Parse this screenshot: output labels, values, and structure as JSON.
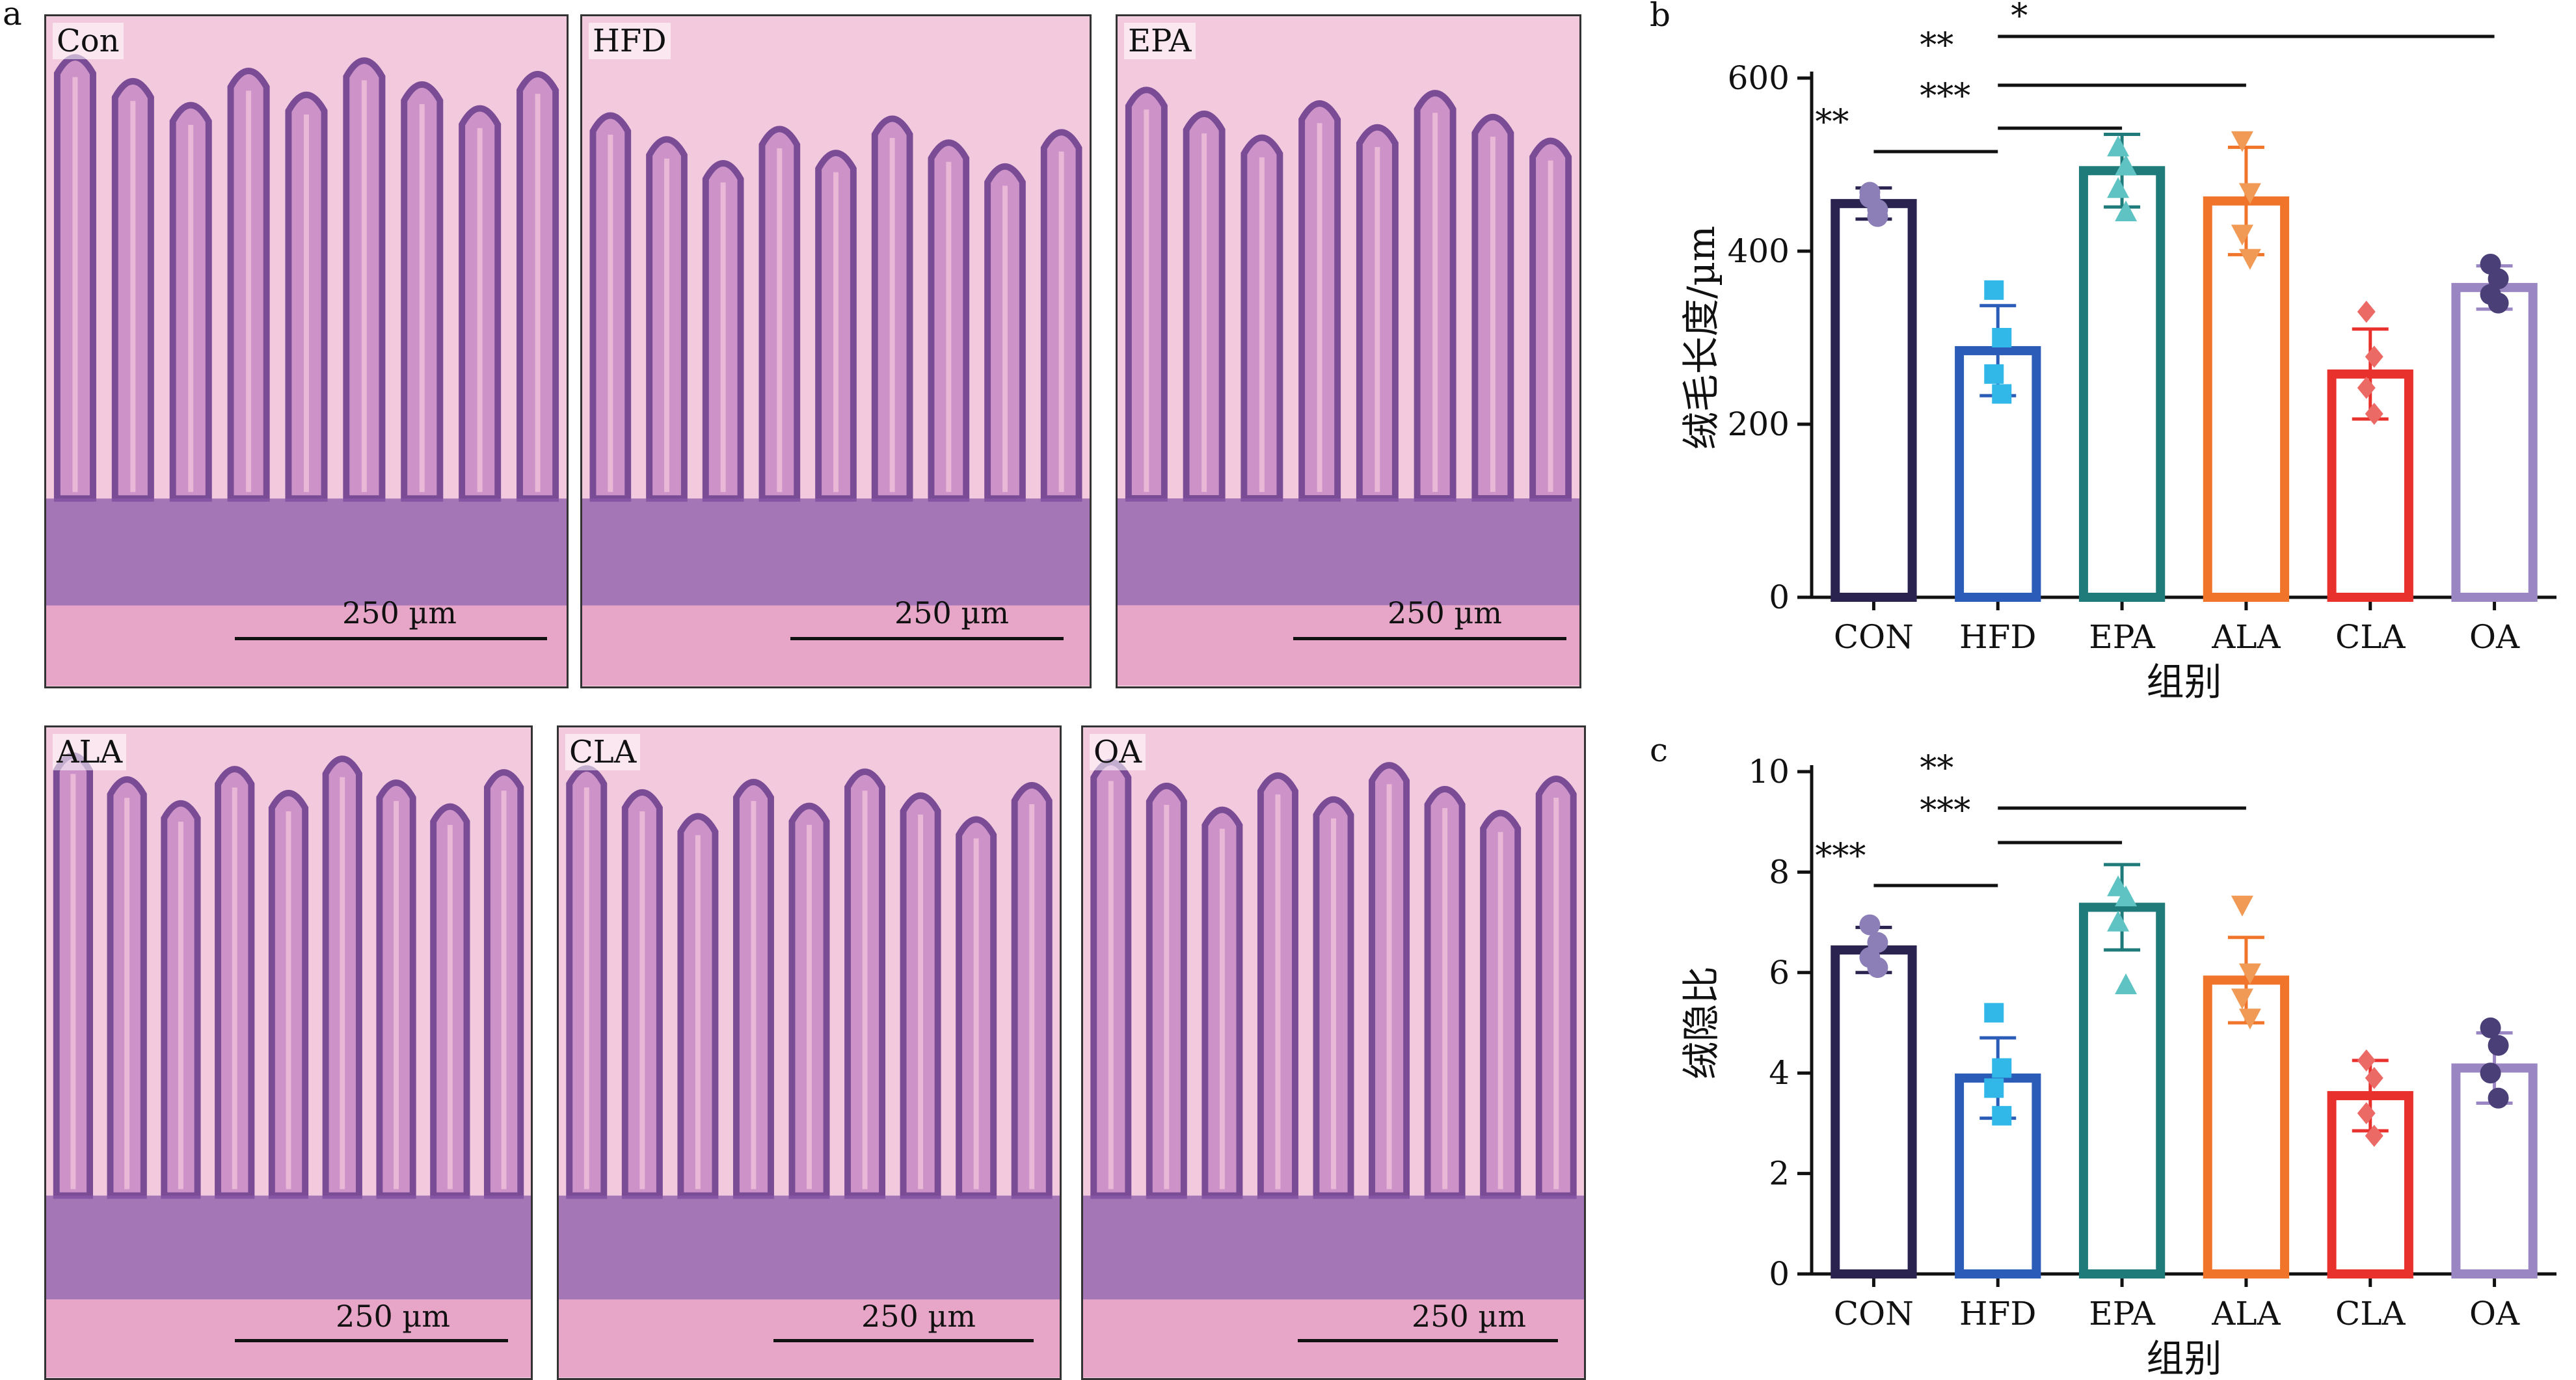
{
  "panel_letters": {
    "a": "a",
    "b": "b",
    "c": "c"
  },
  "micrographs": [
    {
      "label": "Con",
      "scale": "250 µm"
    },
    {
      "label": "HFD",
      "scale": "250 µm"
    },
    {
      "label": "EPA",
      "scale": "250 µm"
    },
    {
      "label": "ALA",
      "scale": "250 µm"
    },
    {
      "label": "CLA",
      "scale": "250 µm"
    },
    {
      "label": "OA",
      "scale": "250 µm"
    }
  ],
  "colors": {
    "CON": "#2a2350",
    "HFD": "#2b5cb8",
    "EPA": "#1f7a7a",
    "ALA": "#f0752a",
    "CLA": "#e8302d",
    "OA": "#9b86c4",
    "HFD_points": "#31b8e8",
    "EPA_points": "#5fc3c3",
    "ALA_points": "#f19a55",
    "CLA_points": "#ec6a66",
    "OA_points": "#4b3f78",
    "CON_points": "#8c7fb8"
  },
  "chart_data": [
    {
      "type": "bar",
      "xlabel": "组别",
      "ylabel": "绒毛长度/µm",
      "ylim": [
        0,
        600
      ],
      "yticks": [
        0,
        200,
        400,
        600
      ],
      "categories": [
        "CON",
        "HFD",
        "EPA",
        "ALA",
        "CLA",
        "OA"
      ],
      "values": [
        455,
        285,
        493,
        458,
        258,
        358
      ],
      "errors": [
        18,
        52,
        42,
        62,
        52,
        25
      ],
      "points": [
        [
          468,
          448,
          462,
          440
        ],
        [
          355,
          300,
          258,
          235
        ],
        [
          520,
          498,
          472,
          445
        ],
        [
          528,
          468,
          420,
          392
        ],
        [
          330,
          278,
          242,
          212
        ],
        [
          385,
          368,
          350,
          340
        ]
      ],
      "significance": [
        {
          "from": "CON",
          "to": "HFD",
          "label": "**"
        },
        {
          "from": "HFD",
          "to": "EPA",
          "label": "***"
        },
        {
          "from": "HFD",
          "to": "ALA",
          "label": "**"
        },
        {
          "from": "HFD",
          "to": "OA",
          "label": "*"
        }
      ]
    },
    {
      "type": "bar",
      "xlabel": "组别",
      "ylabel": "绒隐比",
      "ylim": [
        0,
        10
      ],
      "yticks": [
        0,
        2,
        4,
        6,
        8,
        10
      ],
      "categories": [
        "CON",
        "HFD",
        "EPA",
        "ALA",
        "CLA",
        "OA"
      ],
      "values": [
        6.45,
        3.9,
        7.3,
        5.85,
        3.55,
        4.1
      ],
      "errors": [
        0.45,
        0.8,
        0.85,
        0.85,
        0.7,
        0.7
      ],
      "points": [
        [
          6.95,
          6.6,
          6.3,
          6.1
        ],
        [
          5.2,
          4.1,
          3.7,
          3.15
        ],
        [
          7.7,
          7.5,
          7.0,
          5.75
        ],
        [
          7.35,
          6.0,
          5.5,
          5.1
        ],
        [
          4.25,
          3.9,
          3.2,
          2.75
        ],
        [
          4.9,
          4.55,
          4.0,
          3.5
        ]
      ],
      "significance": [
        {
          "from": "CON",
          "to": "HFD",
          "label": "***"
        },
        {
          "from": "HFD",
          "to": "EPA",
          "label": "***"
        },
        {
          "from": "HFD",
          "to": "ALA",
          "label": "**"
        }
      ]
    }
  ]
}
